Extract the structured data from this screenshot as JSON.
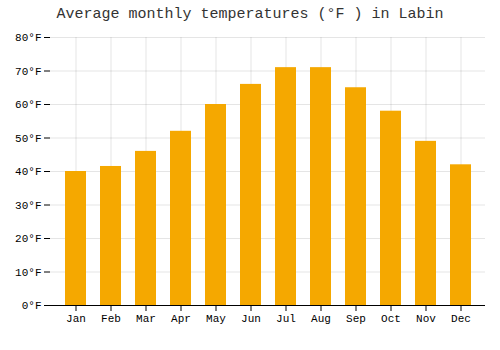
{
  "chart_data": {
    "type": "bar",
    "title": "Average monthly temperatures (°F ) in Labin",
    "categories": [
      "Jan",
      "Feb",
      "Mar",
      "Apr",
      "May",
      "Jun",
      "Jul",
      "Aug",
      "Sep",
      "Oct",
      "Nov",
      "Dec"
    ],
    "values": [
      40,
      41.5,
      46,
      52,
      60,
      66,
      71,
      71,
      65,
      58,
      49,
      42
    ],
    "color": "#F5A800",
    "ylim": [
      0,
      80
    ],
    "yticks": [
      {
        "value": 0,
        "label": "0°F"
      },
      {
        "value": 10,
        "label": "10°F"
      },
      {
        "value": 20,
        "label": "20°F"
      },
      {
        "value": 30,
        "label": "30°F"
      },
      {
        "value": 40,
        "label": "40°F"
      },
      {
        "value": 50,
        "label": "50°F"
      },
      {
        "value": 60,
        "label": "60°F"
      },
      {
        "value": 70,
        "label": "70°F"
      },
      {
        "value": 80,
        "label": "80°F"
      }
    ],
    "grid": true
  }
}
